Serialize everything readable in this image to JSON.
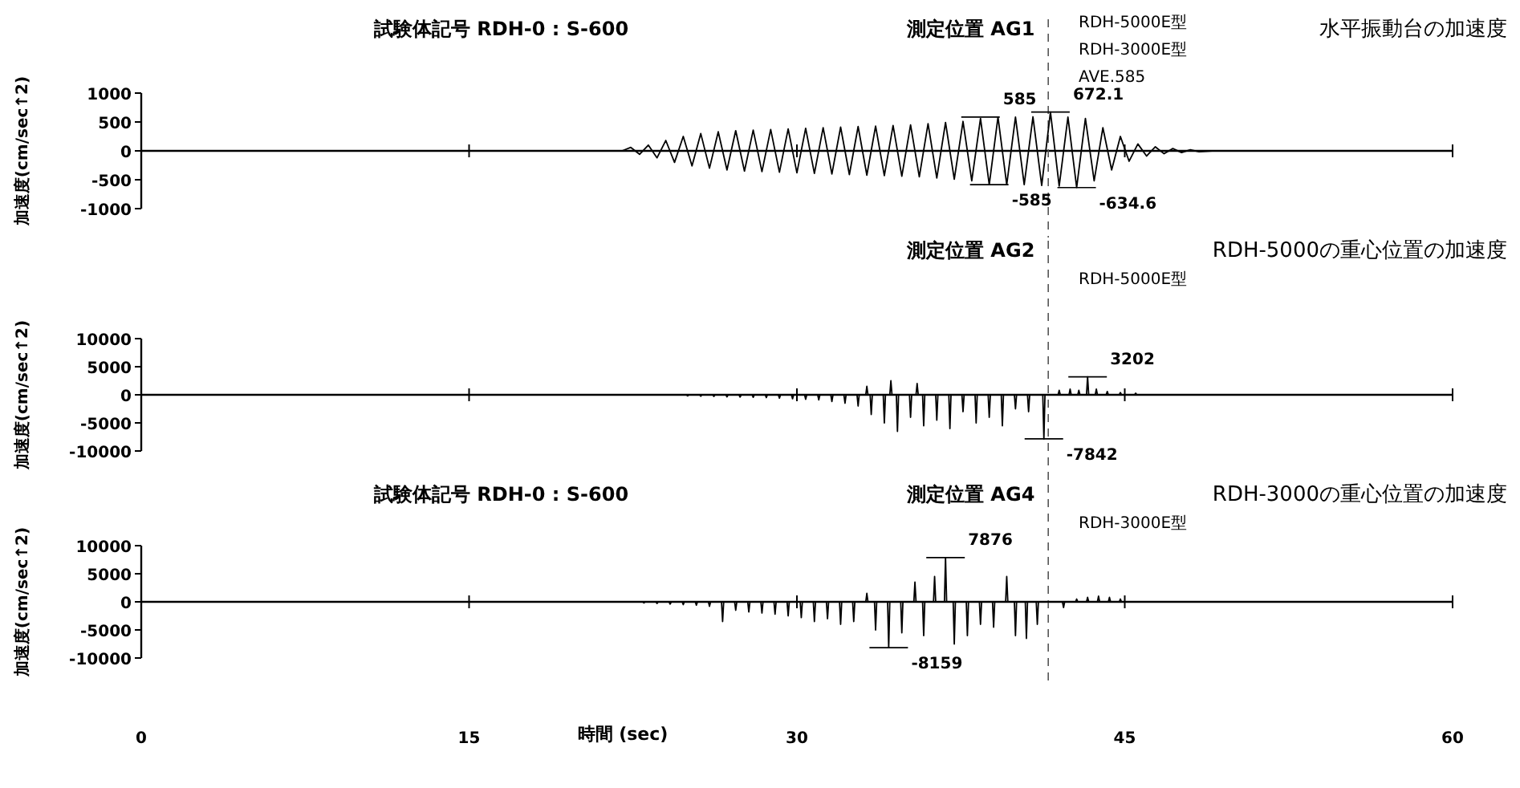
{
  "chart_data": [
    {
      "type": "line",
      "title": "試験体記号 RDH-0 : S-600",
      "subtitle": "水平振動台の加速度",
      "ylabel": "加速度(cm/sec↑2)",
      "tick_labels": "y",
      "marker": "none",
      "line_style": "solid",
      "annotations": [
        "測定位置 AG1",
        "RDH-5000E型",
        "RDH-3000E型",
        "AVE.585",
        {
          "text": "585",
          "x": 38.4,
          "y": 585
        },
        {
          "text": "672.1",
          "x": 41.6,
          "y": 672.1
        },
        {
          "text": "-585",
          "x": 38.8,
          "y": -585
        },
        {
          "text": "-634.6",
          "x": 42.8,
          "y": -634.6
        }
      ],
      "xlim": [
        0,
        60
      ],
      "xticks": [
        0,
        15,
        30,
        45,
        60
      ],
      "ylim": [
        -1000,
        1000
      ],
      "yticks": [
        -1000,
        -500,
        0,
        500,
        1000
      ],
      "ref_lines": [
        {
          "axis": "x",
          "value": 41.5,
          "line_style": "dashed",
          "color": "#555555"
        }
      ],
      "series": [
        {
          "color": "#000000",
          "x": [
            0,
            22.0,
            22.4,
            22.8,
            23.2,
            23.6,
            24.0,
            24.4,
            24.8,
            25.2,
            25.6,
            26.0,
            26.4,
            26.8,
            27.2,
            27.6,
            28.0,
            28.4,
            28.8,
            29.2,
            29.6,
            30.0,
            30.4,
            30.8,
            31.2,
            31.6,
            32.0,
            32.4,
            32.8,
            33.2,
            33.6,
            34.0,
            34.4,
            34.8,
            35.2,
            35.6,
            36.0,
            36.4,
            36.8,
            37.2,
            37.6,
            38.0,
            38.4,
            38.8,
            39.2,
            39.6,
            40.0,
            40.4,
            40.8,
            41.2,
            41.6,
            42.0,
            42.4,
            42.8,
            43.2,
            43.6,
            44.0,
            44.4,
            44.8,
            45.2,
            45.6,
            46.0,
            46.4,
            46.8,
            47.2,
            47.6,
            48.0,
            48.4,
            49.0,
            60
          ],
          "values": [
            0,
            0,
            60,
            -60,
            100,
            -120,
            180,
            -200,
            250,
            -260,
            300,
            -300,
            330,
            -330,
            350,
            -350,
            360,
            -360,
            370,
            -370,
            380,
            -380,
            390,
            -390,
            400,
            -400,
            410,
            -410,
            420,
            -420,
            430,
            -430,
            440,
            -440,
            450,
            -450,
            470,
            -470,
            490,
            -490,
            510,
            -520,
            560,
            -585,
            585,
            -585,
            585,
            -585,
            590,
            -600,
            672.1,
            -610,
            585,
            -634.6,
            560,
            -520,
            400,
            -330,
            250,
            -180,
            120,
            -90,
            70,
            -50,
            40,
            -30,
            20,
            -15,
            0,
            0
          ]
        }
      ]
    },
    {
      "type": "line",
      "subtitle": "RDH-5000の重心位置の加速度",
      "ylabel": "加速度(cm/sec↑2)",
      "tick_labels": "y",
      "marker": "none",
      "line_style": "solid",
      "annotations": [
        "測定位置 AG2",
        "RDH-5000E型",
        {
          "text": "3202",
          "x": 43.3,
          "y": 3202
        },
        {
          "text": "-7842",
          "x": 41.3,
          "y": -7842
        }
      ],
      "xlim": [
        0,
        60
      ],
      "xticks": [
        0,
        15,
        30,
        45,
        60
      ],
      "ylim": [
        -10000,
        10000
      ],
      "yticks": [
        -10000,
        -5000,
        0,
        5000,
        10000
      ],
      "ref_lines": [
        {
          "axis": "x",
          "value": 41.5,
          "line_style": "dashed",
          "color": "#555555"
        }
      ],
      "series": [
        {
          "color": "#000000",
          "x": [
            0,
            24.95,
            25.0,
            25.05,
            25.55,
            25.6,
            25.65,
            26.15,
            26.2,
            26.25,
            26.75,
            26.8,
            26.85,
            27.35,
            27.4,
            27.45,
            27.95,
            28.0,
            28.05,
            28.55,
            28.6,
            28.65,
            29.15,
            29.2,
            29.25,
            29.75,
            29.8,
            29.85,
            30.35,
            30.4,
            30.45,
            30.95,
            31.0,
            31.05,
            31.55,
            31.6,
            31.65,
            32.15,
            32.2,
            32.25,
            32.75,
            32.8,
            32.85,
            33.15,
            33.2,
            33.25,
            33.35,
            33.4,
            33.45,
            33.95,
            34.0,
            34.05,
            34.25,
            34.3,
            34.35,
            34.55,
            34.6,
            34.65,
            35.15,
            35.2,
            35.25,
            35.45,
            35.5,
            35.55,
            35.75,
            35.8,
            35.85,
            36.35,
            36.4,
            36.45,
            36.95,
            37.0,
            37.05,
            37.55,
            37.6,
            37.65,
            38.15,
            38.2,
            38.25,
            38.75,
            38.8,
            38.85,
            39.35,
            39.4,
            39.45,
            39.95,
            40.0,
            40.05,
            40.55,
            40.6,
            40.65,
            41.25,
            41.3,
            41.35,
            41.95,
            42.0,
            42.05,
            42.45,
            42.5,
            42.55,
            42.85,
            42.9,
            42.95,
            43.25,
            43.3,
            43.35,
            43.65,
            43.7,
            43.75,
            44.15,
            44.2,
            44.25,
            44.75,
            44.8,
            44.85,
            45.45,
            45.5,
            45.55,
            60
          ],
          "values": [
            0,
            0,
            -200,
            0,
            0,
            -250,
            0,
            0,
            -300,
            0,
            0,
            -350,
            0,
            0,
            -400,
            0,
            0,
            -450,
            0,
            0,
            -500,
            0,
            0,
            -600,
            0,
            0,
            -700,
            0,
            0,
            -800,
            0,
            0,
            -900,
            0,
            0,
            -1200,
            0,
            0,
            -1500,
            0,
            0,
            -2000,
            0,
            0,
            1500,
            0,
            0,
            -3500,
            0,
            0,
            -5000,
            0,
            0,
            2500,
            0,
            0,
            -6500,
            0,
            0,
            -4000,
            0,
            0,
            2000,
            0,
            0,
            -5500,
            0,
            0,
            -4500,
            0,
            0,
            -6000,
            0,
            0,
            -3000,
            0,
            0,
            -5000,
            0,
            0,
            -4000,
            0,
            0,
            -5500,
            0,
            0,
            -2500,
            0,
            0,
            -3000,
            0,
            0,
            -7842,
            0,
            0,
            800,
            0,
            0,
            1000,
            0,
            0,
            800,
            0,
            0,
            3202,
            0,
            0,
            1000,
            0,
            0,
            600,
            0,
            0,
            400,
            0,
            0,
            300,
            0,
            0
          ]
        }
      ]
    },
    {
      "type": "line",
      "title": "試験体記号 RDH-0 : S-600",
      "subtitle": "RDH-3000の重心位置の加速度",
      "ylabel": "加速度(cm/sec↑2)",
      "xlabel": "時間 (sec)",
      "marker": "none",
      "line_style": "solid",
      "annotations": [
        "測定位置 AG4",
        "RDH-3000E型",
        {
          "text": "7876",
          "x": 36.8,
          "y": 7876
        },
        {
          "text": "-8159",
          "x": 34.2,
          "y": -8159
        }
      ],
      "xlim": [
        0,
        60
      ],
      "xticks": [
        0,
        15,
        30,
        45,
        60
      ],
      "ylim": [
        -10000,
        10000
      ],
      "yticks": [
        -10000,
        -5000,
        0,
        5000,
        10000
      ],
      "ref_lines": [
        {
          "axis": "x",
          "value": 41.5,
          "line_style": "dashed",
          "color": "#555555"
        }
      ],
      "series": [
        {
          "color": "#000000",
          "x": [
            0,
            22.95,
            23.0,
            23.05,
            23.55,
            23.6,
            23.65,
            24.15,
            24.2,
            24.25,
            24.75,
            24.8,
            24.85,
            25.35,
            25.4,
            25.45,
            25.95,
            26.0,
            26.05,
            26.55,
            26.6,
            26.65,
            27.15,
            27.2,
            27.25,
            27.75,
            27.8,
            27.85,
            28.35,
            28.4,
            28.45,
            28.95,
            29.0,
            29.05,
            29.55,
            29.6,
            29.65,
            30.15,
            30.2,
            30.25,
            30.75,
            30.8,
            30.85,
            31.35,
            31.4,
            31.45,
            31.95,
            32.0,
            32.05,
            32.55,
            32.6,
            32.65,
            33.15,
            33.2,
            33.25,
            33.55,
            33.6,
            33.65,
            34.15,
            34.2,
            34.25,
            34.75,
            34.8,
            34.85,
            35.35,
            35.4,
            35.45,
            35.75,
            35.8,
            35.85,
            36.25,
            36.3,
            36.35,
            36.75,
            36.8,
            36.85,
            37.15,
            37.2,
            37.25,
            37.75,
            37.8,
            37.85,
            38.35,
            38.4,
            38.45,
            38.95,
            39.0,
            39.05,
            39.55,
            39.6,
            39.65,
            39.95,
            40.0,
            40.05,
            40.45,
            40.5,
            40.55,
            40.95,
            41.0,
            41.05,
            42.15,
            42.2,
            42.25,
            42.75,
            42.8,
            42.85,
            43.25,
            43.3,
            43.35,
            43.75,
            43.8,
            43.85,
            44.25,
            44.3,
            44.35,
            44.75,
            44.8,
            44.85,
            60
          ],
          "values": [
            0,
            0,
            -200,
            0,
            0,
            -300,
            0,
            0,
            -400,
            0,
            0,
            -500,
            0,
            0,
            -600,
            0,
            0,
            -800,
            0,
            0,
            -3500,
            0,
            0,
            -1500,
            0,
            0,
            -1800,
            0,
            0,
            -2000,
            0,
            0,
            -2200,
            0,
            0,
            -2500,
            0,
            0,
            -2800,
            0,
            0,
            -3500,
            0,
            0,
            -3000,
            0,
            0,
            -4000,
            0,
            0,
            -3500,
            0,
            0,
            1500,
            0,
            0,
            -5000,
            0,
            0,
            -8159,
            0,
            0,
            -5500,
            0,
            0,
            3500,
            0,
            0,
            -6000,
            0,
            0,
            4500,
            0,
            0,
            7876,
            0,
            0,
            -7500,
            0,
            0,
            -6000,
            0,
            0,
            -4000,
            0,
            0,
            -4500,
            0,
            0,
            4500,
            0,
            0,
            -6000,
            0,
            0,
            -6500,
            0,
            0,
            -4000,
            0,
            0,
            -1000,
            0,
            0,
            500,
            0,
            0,
            800,
            0,
            0,
            1000,
            0,
            0,
            800,
            0,
            0,
            500,
            0,
            0
          ]
        }
      ]
    }
  ]
}
